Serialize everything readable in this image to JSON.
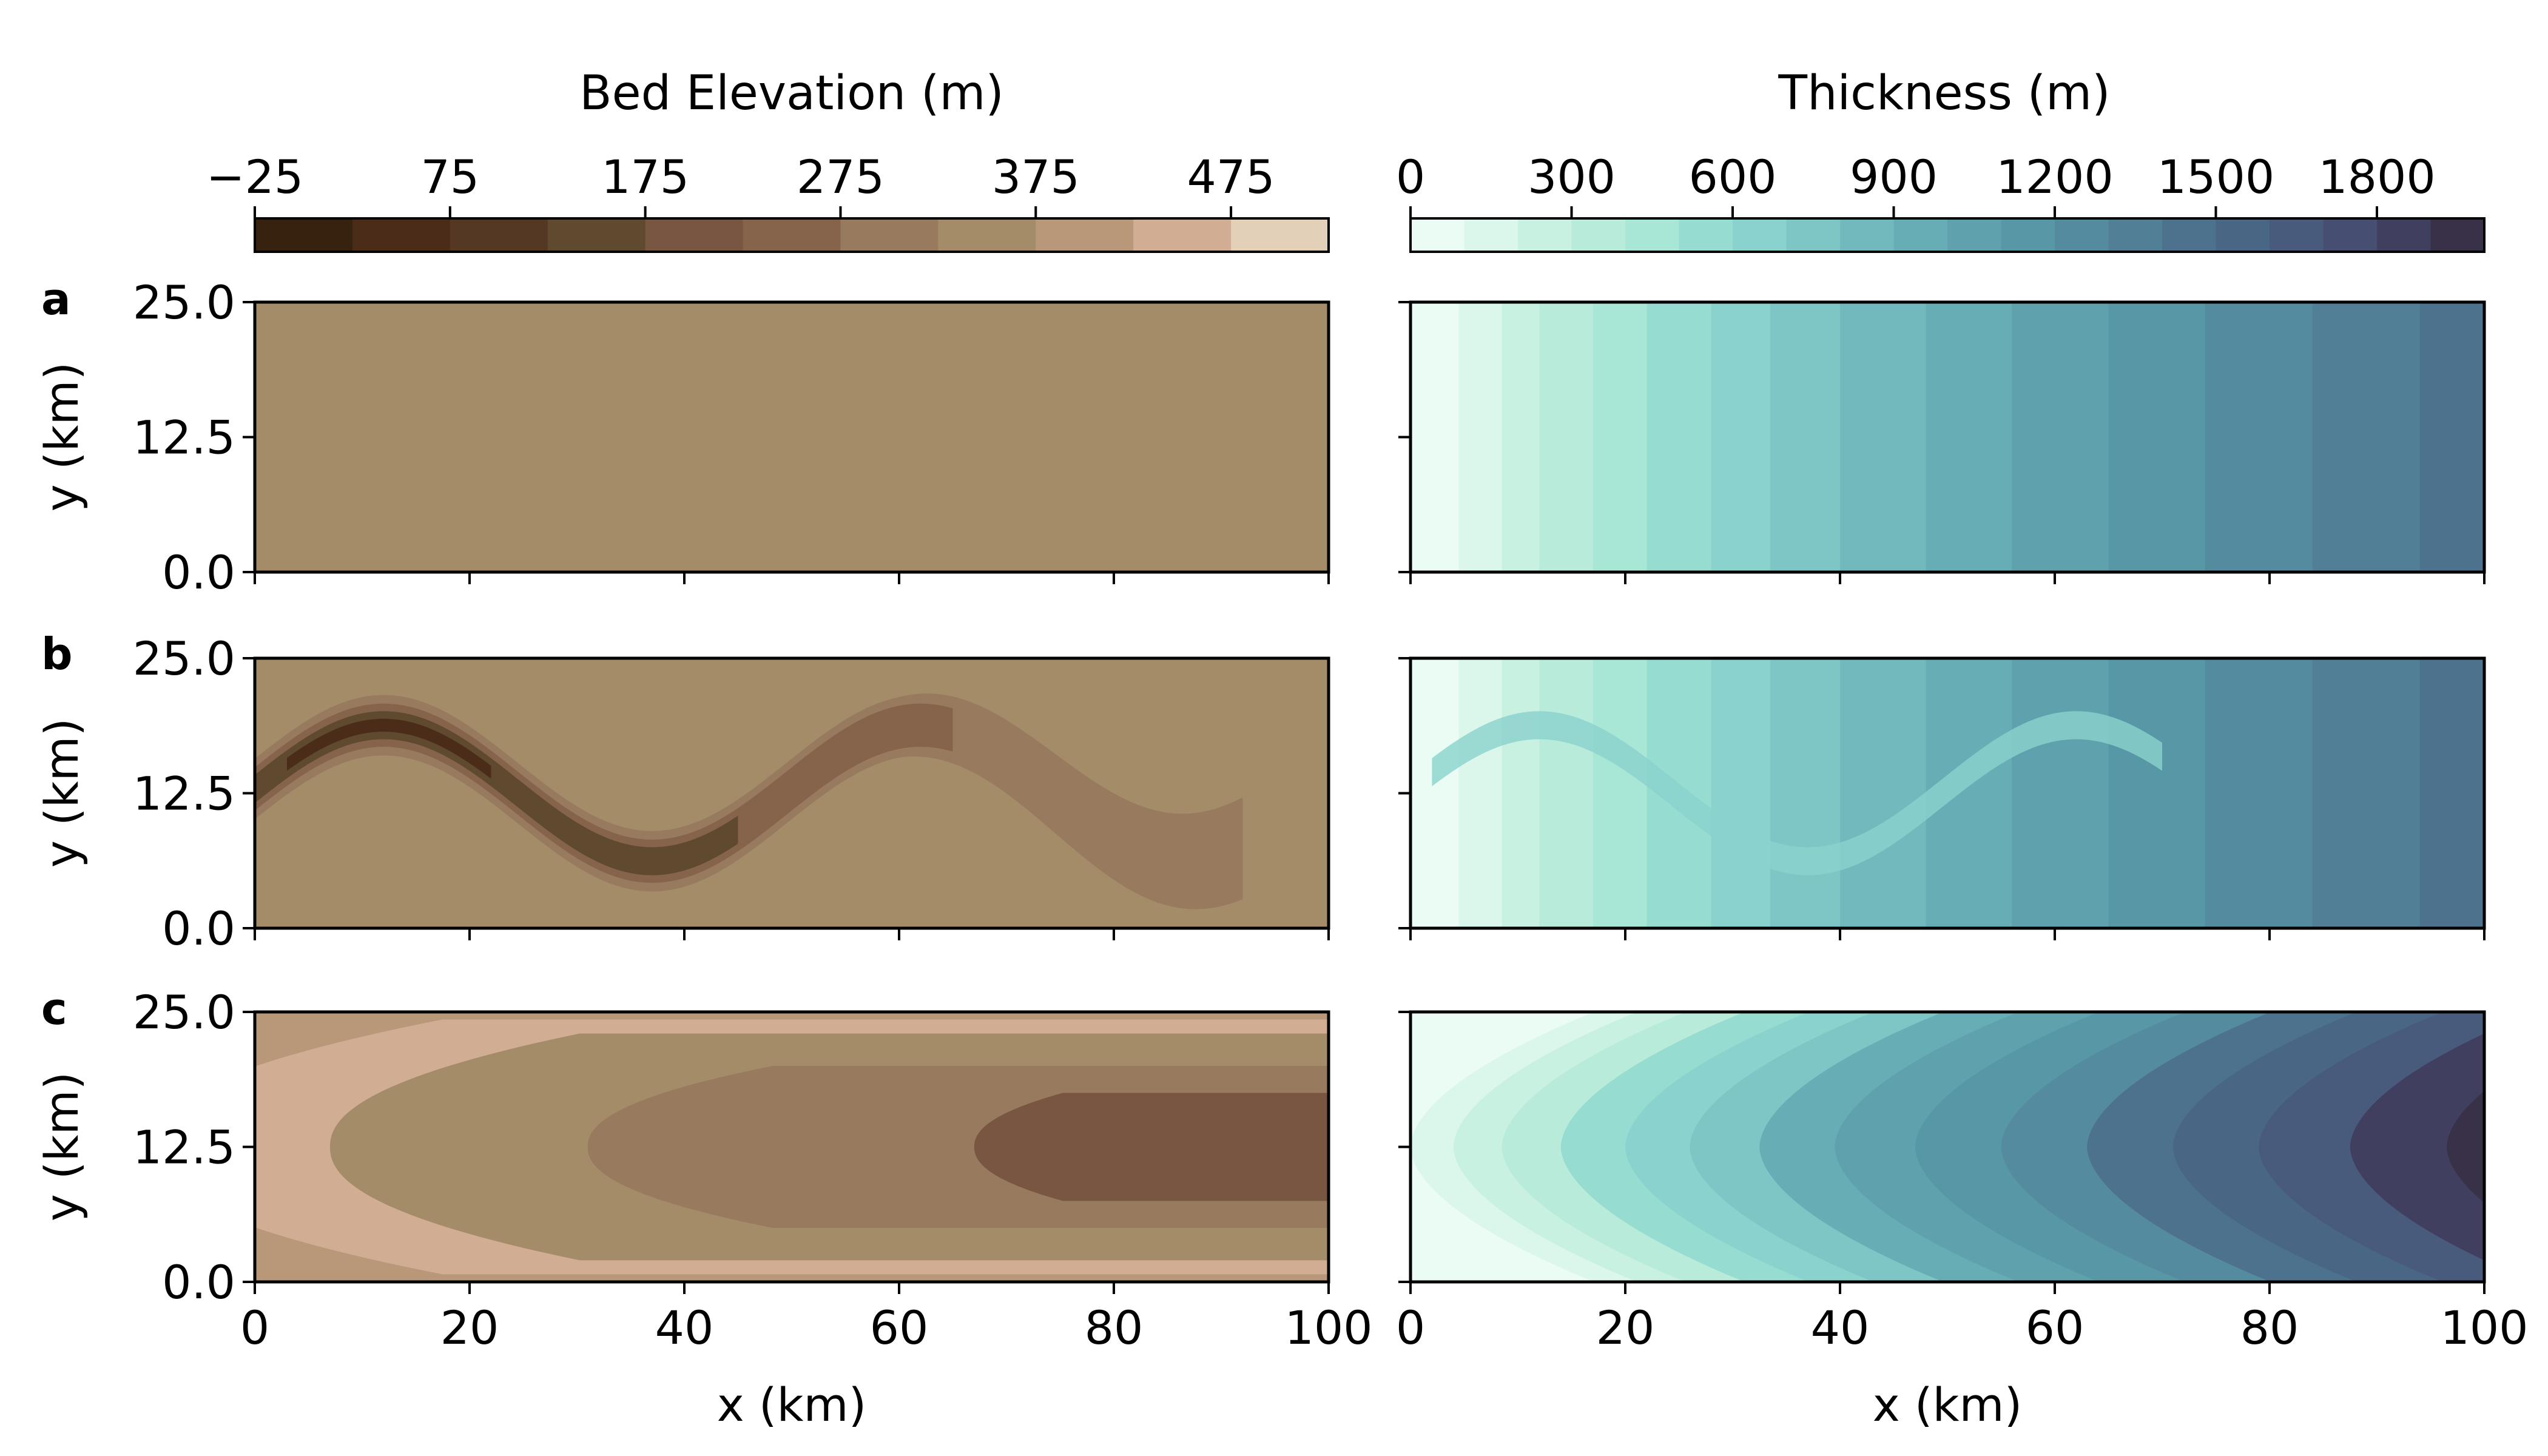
{
  "figure": {
    "panel_labels": [
      "a",
      "b",
      "c"
    ],
    "colorbars": {
      "bed": {
        "title": "Bed Elevation (m)",
        "tick_labels": [
          "−25",
          "75",
          "175",
          "275",
          "375",
          "475"
        ],
        "tick_values": [
          -25,
          75,
          175,
          275,
          375,
          475
        ],
        "range": [
          -25,
          525
        ],
        "levels": 11,
        "colors": [
          "#36220f",
          "#4a2c18",
          "#553823",
          "#5f4a30",
          "#785642",
          "#86644c",
          "#987a5e",
          "#a48c68",
          "#b89878",
          "#d1ad94",
          "#e3d0b8"
        ]
      },
      "thickness": {
        "title": "Thickness (m)",
        "tick_labels": [
          "0",
          "300",
          "600",
          "900",
          "1200",
          "1500",
          "1800"
        ],
        "tick_values": [
          0,
          300,
          600,
          900,
          1200,
          1500,
          1800
        ],
        "range": [
          0,
          2000
        ],
        "levels": 20,
        "colors": [
          "#eafcf4",
          "#dbf7ec",
          "#c8f1e1",
          "#b8ebda",
          "#a8e6d6",
          "#97dcd0",
          "#89d2cd",
          "#7ec6c5",
          "#72b9be",
          "#67adb6",
          "#5fa2ad",
          "#5897a5",
          "#548b9e",
          "#507f96",
          "#4c728d",
          "#4a6685",
          "#485b7c",
          "#464f72",
          "#413f60",
          "#383148"
        ]
      }
    }
  },
  "chart_data": [
    {
      "type": "heatmap",
      "panel": "a",
      "quantity": "Bed Elevation (m)",
      "description_note": "uniform bed",
      "value": 325,
      "xlabel": "",
      "ylabel": "y (km)",
      "xlim": [
        0,
        100
      ],
      "ylim": [
        0,
        25
      ],
      "xticks": [
        "0",
        "20",
        "40",
        "60",
        "80",
        "100"
      ],
      "yticks": [
        "0.0",
        "12.5",
        "25.0"
      ]
    },
    {
      "type": "heatmap",
      "panel": "a",
      "quantity": "Thickness (m)",
      "xlim": [
        0,
        100
      ],
      "ylim": [
        0,
        25
      ],
      "band_edges_x": [
        0,
        4.5,
        8.5,
        12,
        17,
        22,
        28,
        33.5,
        40,
        48,
        56,
        65,
        74,
        84,
        94,
        100
      ]
    },
    {
      "type": "heatmap",
      "panel": "b",
      "quantity": "Bed Elevation (m)",
      "background": 325,
      "trough": "sinusoidal channel from x=0 to x~93, center y~12.5, amplitude ~6.5",
      "xlabel": "",
      "ylabel": "y (km)",
      "xlim": [
        0,
        100
      ],
      "ylim": [
        0,
        25
      ],
      "xticks": [
        "0",
        "20",
        "40",
        "60",
        "80",
        "100"
      ],
      "yticks": [
        "0.0",
        "12.5",
        "25.0"
      ]
    },
    {
      "type": "heatmap",
      "panel": "b",
      "quantity": "Thickness (m)",
      "xlim": [
        0,
        100
      ],
      "ylim": [
        0,
        25
      ],
      "band_edges_x": [
        0,
        4.5,
        8.5,
        12,
        17,
        22,
        28,
        33.5,
        40,
        48,
        56,
        65,
        74,
        84,
        94,
        100
      ]
    },
    {
      "type": "heatmap",
      "panel": "c",
      "quantity": "Bed Elevation (m)",
      "contour_levels": [
        375,
        325,
        275,
        225,
        175
      ],
      "xlabel": "x (km)",
      "ylabel": "y (km)",
      "xlim": [
        0,
        100
      ],
      "ylim": [
        0,
        25
      ],
      "xticks": [
        "0",
        "20",
        "40",
        "60",
        "80",
        "100"
      ],
      "yticks": [
        "0.0",
        "12.5",
        "25.0"
      ]
    },
    {
      "type": "heatmap",
      "panel": "c",
      "quantity": "Thickness (m)",
      "xlabel": "x (km)",
      "xlim": [
        0,
        100
      ],
      "ylim": [
        0,
        25
      ],
      "xticks": [
        "0",
        "20",
        "40",
        "60",
        "80",
        "100"
      ]
    }
  ]
}
